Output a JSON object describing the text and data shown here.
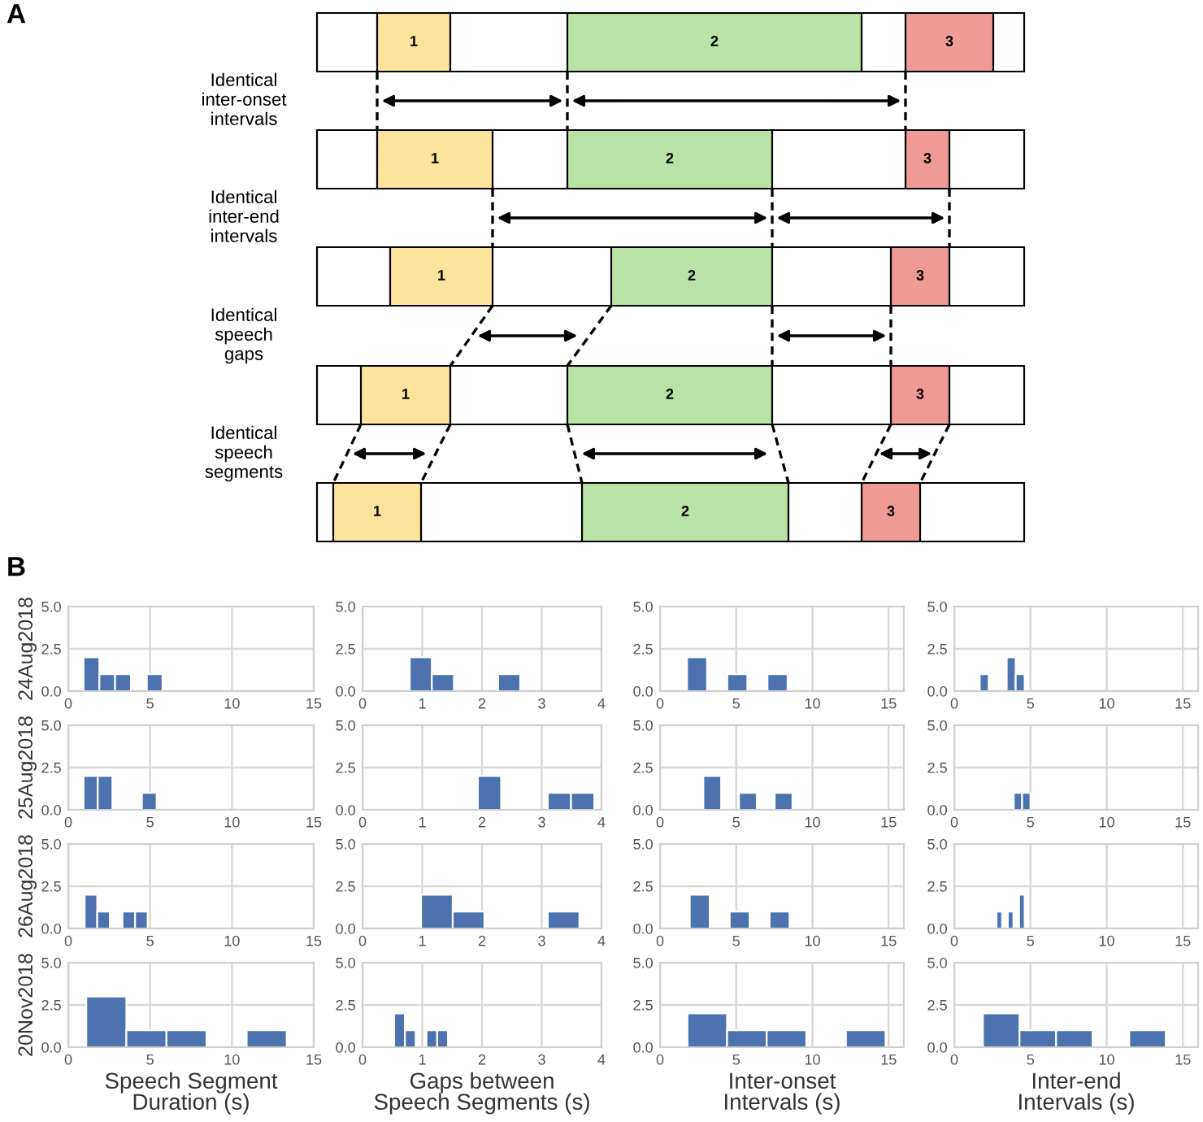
{
  "chart_data": [
    {
      "type": "other",
      "annotations": [
        "A",
        "Identical\ninter-onset\nintervals",
        "Identical\ninter-end\nintervals",
        "Identical\nspeech\ngaps",
        "Identical\nspeech\nsegments"
      ],
      "categories": [
        "1",
        "2",
        "3"
      ],
      "colors": [
        "#fde39c",
        "#b9e2a4",
        "#f09a98"
      ]
    },
    {
      "type": "histogram",
      "annotations": [
        "B"
      ],
      "ylabel": "24Aug2018",
      "bins": [
        0.93,
        1.9,
        2.86,
        3.83,
        4.8,
        5.76
      ],
      "values": [
        2,
        1,
        1,
        0,
        1
      ],
      "color": "#4c72b0",
      "xlim": [
        0,
        15
      ],
      "xticks": [
        0,
        5,
        10,
        15
      ],
      "ylim": [
        0,
        5
      ],
      "yticks": [
        {
          "value": 0,
          "label": "0.0"
        },
        {
          "value": 2.5,
          "label": "2.5"
        },
        {
          "value": 5,
          "label": "5.0"
        }
      ],
      "grid": true
    },
    {
      "type": "histogram",
      "bins": [
        0.79,
        1.16,
        1.53,
        2.27,
        2.64
      ],
      "values": [
        2,
        1,
        0,
        1
      ],
      "color": "#4c72b0",
      "xlim": [
        0,
        4
      ],
      "xticks": [
        0,
        1,
        2,
        3,
        4
      ],
      "ylim": [
        0,
        5
      ],
      "yticks": [
        {
          "value": 0,
          "label": "0.0"
        },
        {
          "value": 2.5,
          "label": "2.5"
        },
        {
          "value": 5,
          "label": "5.0"
        }
      ],
      "grid": true
    },
    {
      "type": "histogram",
      "bins": [
        1.77,
        3.09,
        4.41,
        5.73,
        7.05,
        8.37
      ],
      "values": [
        2,
        0,
        1,
        0,
        1
      ],
      "color": "#4c72b0",
      "xlim": [
        0,
        16
      ],
      "xticks": [
        0,
        5,
        10,
        15
      ],
      "ylim": [
        0,
        5
      ],
      "yticks": [
        {
          "value": 0,
          "label": "0.0"
        },
        {
          "value": 2.5,
          "label": "2.5"
        },
        {
          "value": 5,
          "label": "5.0"
        }
      ],
      "grid": true
    },
    {
      "type": "histogram",
      "bins": [
        1.67,
        2.26,
        3.44,
        4.03,
        4.62
      ],
      "values": [
        1,
        0,
        2,
        1
      ],
      "color": "#4c72b0",
      "xlim": [
        0,
        16
      ],
      "xticks": [
        0,
        5,
        10,
        15
      ],
      "ylim": [
        0,
        5
      ],
      "yticks": [
        {
          "value": 0,
          "label": "0.0"
        },
        {
          "value": 2.5,
          "label": "2.5"
        },
        {
          "value": 5,
          "label": "5.0"
        }
      ],
      "grid": true
    },
    {
      "type": "histogram",
      "ylabel": "25Aug2018",
      "bins": [
        0.93,
        1.8,
        2.7,
        4.5,
        5.4
      ],
      "values": [
        2,
        2,
        0,
        1
      ],
      "color": "#4c72b0",
      "xlim": [
        0,
        15
      ],
      "xticks": [
        0,
        5,
        10,
        15
      ],
      "ylim": [
        0,
        5
      ],
      "yticks": [
        {
          "value": 0,
          "label": "0.0"
        },
        {
          "value": 2.5,
          "label": "2.5"
        },
        {
          "value": 5,
          "label": "5.0"
        }
      ],
      "grid": true
    },
    {
      "type": "histogram",
      "bins": [
        1.93,
        2.32,
        3.1,
        3.49,
        3.88
      ],
      "values": [
        2,
        0,
        1,
        1
      ],
      "color": "#4c72b0",
      "xlim": [
        0,
        4
      ],
      "xticks": [
        0,
        1,
        2,
        3,
        4
      ],
      "ylim": [
        0,
        5
      ],
      "yticks": [
        {
          "value": 0,
          "label": "0.0"
        },
        {
          "value": 2.5,
          "label": "2.5"
        },
        {
          "value": 5,
          "label": "5.0"
        }
      ],
      "grid": true
    },
    {
      "type": "histogram",
      "bins": [
        2.84,
        4.01,
        5.18,
        6.35,
        7.52,
        8.69
      ],
      "values": [
        2,
        0,
        1,
        0,
        1
      ],
      "color": "#4c72b0",
      "xlim": [
        0,
        16
      ],
      "xticks": [
        0,
        5,
        10,
        15
      ],
      "ylim": [
        0,
        5
      ],
      "yticks": [
        {
          "value": 0,
          "label": "0.0"
        },
        {
          "value": 2.5,
          "label": "2.5"
        },
        {
          "value": 5,
          "label": "5.0"
        }
      ],
      "grid": true
    },
    {
      "type": "histogram",
      "bins": [
        3.9,
        4.45,
        5.0
      ],
      "values": [
        1,
        1
      ],
      "color": "#4c72b0",
      "xlim": [
        0,
        16
      ],
      "xticks": [
        0,
        5,
        10,
        15
      ],
      "ylim": [
        0,
        5
      ],
      "yticks": [
        {
          "value": 0,
          "label": "0.0"
        },
        {
          "value": 2.5,
          "label": "2.5"
        },
        {
          "value": 5,
          "label": "5.0"
        }
      ],
      "grid": true
    },
    {
      "type": "histogram",
      "ylabel": "26Aug2018",
      "bins": [
        1.0,
        1.77,
        2.54,
        3.31,
        4.08,
        4.85
      ],
      "values": [
        2,
        1,
        0,
        1,
        1
      ],
      "color": "#4c72b0",
      "xlim": [
        0,
        15
      ],
      "xticks": [
        0,
        5,
        10,
        15
      ],
      "ylim": [
        0,
        5
      ],
      "yticks": [
        {
          "value": 0,
          "label": "0.0"
        },
        {
          "value": 2.5,
          "label": "2.5"
        },
        {
          "value": 5,
          "label": "5.0"
        }
      ],
      "grid": true
    },
    {
      "type": "histogram",
      "bins": [
        0.98,
        1.51,
        2.04,
        3.1,
        3.63
      ],
      "values": [
        2,
        1,
        0,
        1
      ],
      "color": "#4c72b0",
      "xlim": [
        0,
        4
      ],
      "xticks": [
        0,
        1,
        2,
        3,
        4
      ],
      "ylim": [
        0,
        5
      ],
      "yticks": [
        {
          "value": 0,
          "label": "0.0"
        },
        {
          "value": 2.5,
          "label": "2.5"
        },
        {
          "value": 5,
          "label": "5.0"
        }
      ],
      "grid": true
    },
    {
      "type": "histogram",
      "bins": [
        1.95,
        3.26,
        4.57,
        5.88,
        7.19,
        8.5
      ],
      "values": [
        2,
        0,
        1,
        0,
        1
      ],
      "color": "#4c72b0",
      "xlim": [
        0,
        16
      ],
      "xticks": [
        0,
        5,
        10,
        15
      ],
      "ylim": [
        0,
        5
      ],
      "yticks": [
        {
          "value": 0,
          "label": "0.0"
        },
        {
          "value": 2.5,
          "label": "2.5"
        },
        {
          "value": 5,
          "label": "5.0"
        }
      ],
      "grid": true
    },
    {
      "type": "histogram",
      "bins": [
        2.77,
        3.14,
        3.51,
        3.88,
        4.25,
        4.62
      ],
      "values": [
        1,
        0,
        1,
        0,
        2
      ],
      "color": "#4c72b0",
      "xlim": [
        0,
        16
      ],
      "xticks": [
        0,
        5,
        10,
        15
      ],
      "ylim": [
        0,
        5
      ],
      "yticks": [
        {
          "value": 0,
          "label": "0.0"
        },
        {
          "value": 2.5,
          "label": "2.5"
        },
        {
          "value": 5,
          "label": "5.0"
        }
      ],
      "grid": true
    },
    {
      "type": "histogram",
      "ylabel": "20Nov2018",
      "xlabel": "Speech Segment\nDuration (s)",
      "bins": [
        1.1,
        3.55,
        6.0,
        8.45,
        10.9,
        13.35
      ],
      "values": [
        3,
        1,
        1,
        0,
        1
      ],
      "color": "#4c72b0",
      "xlim": [
        0,
        15
      ],
      "xticks": [
        0,
        5,
        10,
        15
      ],
      "ylim": [
        0,
        5
      ],
      "yticks": [
        {
          "value": 0,
          "label": "0.0"
        },
        {
          "value": 2.5,
          "label": "2.5"
        },
        {
          "value": 5,
          "label": "5.0"
        }
      ],
      "grid": true
    },
    {
      "type": "histogram",
      "xlabel": "Gaps between\nSpeech Segments (s)",
      "bins": [
        0.53,
        0.71,
        0.89,
        1.07,
        1.25,
        1.43
      ],
      "values": [
        2,
        1,
        0,
        1,
        1
      ],
      "color": "#4c72b0",
      "xlim": [
        0,
        4
      ],
      "xticks": [
        0,
        1,
        2,
        3,
        4
      ],
      "ylim": [
        0,
        5
      ],
      "yticks": [
        {
          "value": 0,
          "label": "0.0"
        },
        {
          "value": 2.5,
          "label": "2.5"
        },
        {
          "value": 5,
          "label": "5.0"
        }
      ],
      "grid": true
    },
    {
      "type": "histogram",
      "xlabel": "Inter-onset\nIntervals (s)",
      "bins": [
        1.8,
        4.4,
        7.0,
        9.6,
        12.2,
        14.8
      ],
      "values": [
        2,
        1,
        1,
        0,
        1
      ],
      "color": "#4c72b0",
      "xlim": [
        0,
        16
      ],
      "xticks": [
        0,
        5,
        10,
        15
      ],
      "ylim": [
        0,
        5
      ],
      "yticks": [
        {
          "value": 0,
          "label": "0.0"
        },
        {
          "value": 2.5,
          "label": "2.5"
        },
        {
          "value": 5,
          "label": "5.0"
        }
      ],
      "grid": true
    },
    {
      "type": "histogram",
      "xlabel": "Inter-end\nIntervals (s)",
      "bins": [
        1.88,
        4.28,
        6.68,
        9.08,
        11.48,
        13.88
      ],
      "values": [
        2,
        1,
        1,
        0,
        1
      ],
      "color": "#4c72b0",
      "xlim": [
        0,
        16
      ],
      "xticks": [
        0,
        5,
        10,
        15
      ],
      "ylim": [
        0,
        5
      ],
      "yticks": [
        {
          "value": 0,
          "label": "0.0"
        },
        {
          "value": 2.5,
          "label": "2.5"
        },
        {
          "value": 5,
          "label": "5.0"
        }
      ],
      "grid": true
    }
  ]
}
